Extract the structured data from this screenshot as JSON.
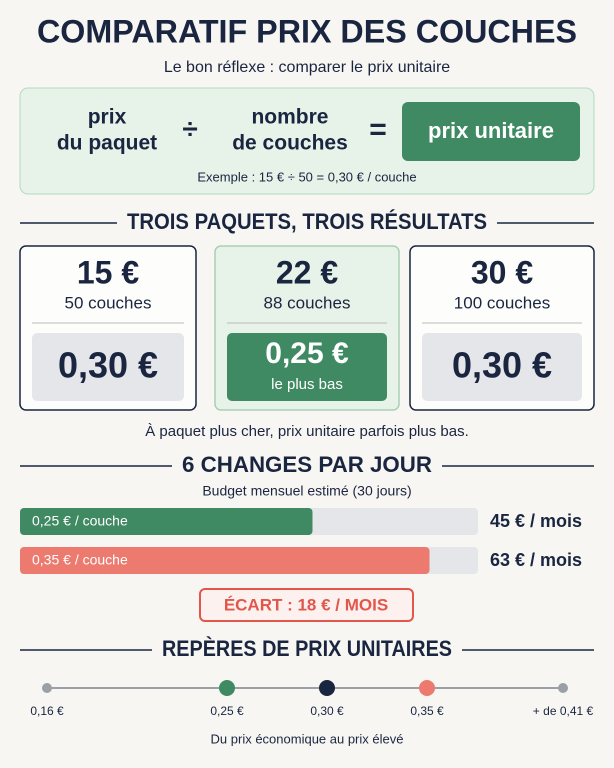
{
  "header": {
    "title": "COMPARATIF PRIX DES COUCHES",
    "subtitle": "Le bon réflexe : comparer le prix unitaire"
  },
  "formula": {
    "left": [
      "prix",
      "du paquet"
    ],
    "divide": "÷",
    "right": [
      "nombre",
      "de couches"
    ],
    "equals": "=",
    "result": "prix unitaire",
    "example": "Exemple : 15 € ÷ 50 = 0,30 € / couche"
  },
  "packs": {
    "title": "TROIS PAQUETS, TROIS RÉSULTATS",
    "items": [
      {
        "price": "15 €",
        "count": "50 couches",
        "unit_price": "0,30 €"
      },
      {
        "price": "22 €",
        "count": "88 couches",
        "unit_price": "0,25 €",
        "badge": "le plus bas",
        "highlight": true
      },
      {
        "price": "30 €",
        "count": "100 couches",
        "unit_price": "0,30 €"
      }
    ],
    "note": "À paquet plus cher, prix unitaire parfois plus bas."
  },
  "budget": {
    "title": "6 CHANGES PAR JOUR",
    "subtitle": "Budget mensuel estimé (30 jours)",
    "bars": [
      {
        "label": "0,25 € / couche",
        "value": 45,
        "value_label": "45 € / mois",
        "color": "#3f8a63"
      },
      {
        "label": "0,35 € / couche",
        "value": 63,
        "value_label": "63 € / mois",
        "color": "#ec7a6f"
      }
    ],
    "gap": "ÉCART : 18 € / MOIS"
  },
  "scale": {
    "title": "REPÈRES DE PRIX UNITAIRES",
    "markers": [
      {
        "value": 0.16,
        "label": "0,16 €",
        "color": "#9aa0a6"
      },
      {
        "value": 0.25,
        "label": "0,25 €",
        "color": "#3f8a63"
      },
      {
        "value": 0.3,
        "label": "0,30 €",
        "color": "#1a2540"
      },
      {
        "value": 0.35,
        "label": "0,35 €",
        "color": "#ec7a6f"
      },
      {
        "value": 0.41,
        "label": "+ de 0,41 €",
        "color": "#9aa0a6"
      }
    ],
    "caption": "Du prix économique au prix élevé"
  }
}
